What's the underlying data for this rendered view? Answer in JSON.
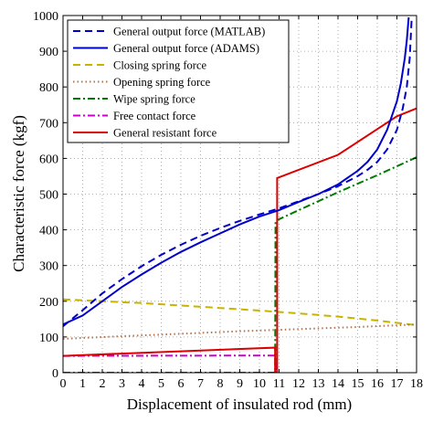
{
  "chart_data": {
    "type": "line",
    "xlabel": "Displacement of insulated rod (mm)",
    "ylabel": "Characteristic force (kgf)",
    "xlim": [
      0,
      18
    ],
    "ylim": [
      0,
      1000
    ],
    "xticks": [
      0,
      1,
      2,
      3,
      4,
      5,
      6,
      7,
      8,
      9,
      10,
      11,
      12,
      13,
      14,
      15,
      16,
      17,
      18
    ],
    "yticks": [
      0,
      100,
      200,
      300,
      400,
      500,
      600,
      700,
      800,
      900,
      1000
    ],
    "grid": true,
    "legend_position": "top-left",
    "series": [
      {
        "name": "General output force (MATLAB)",
        "color": "#0000cc",
        "style": "dashed",
        "x": [
          0,
          1,
          2,
          3,
          4,
          5,
          6,
          7,
          8,
          9,
          10,
          11,
          12,
          13,
          14,
          15,
          15.5,
          16,
          16.5,
          17,
          17.3,
          17.5,
          17.65,
          17.75
        ],
        "y": [
          130,
          175,
          222,
          262,
          298,
          330,
          358,
          383,
          405,
          425,
          443,
          460,
          480,
          500,
          522,
          550,
          568,
          590,
          625,
          680,
          740,
          800,
          880,
          990
        ]
      },
      {
        "name": "General output force (ADAMS)",
        "color": "#0000cc",
        "style": "solid",
        "x": [
          0,
          1,
          2,
          3,
          4,
          5,
          6,
          7,
          8,
          9,
          10,
          11,
          12,
          13,
          14,
          15,
          15.5,
          16,
          16.5,
          17,
          17.2,
          17.4,
          17.5,
          17.6
        ],
        "y": [
          135,
          160,
          200,
          240,
          275,
          308,
          338,
          365,
          390,
          415,
          437,
          455,
          478,
          500,
          527,
          565,
          590,
          625,
          680,
          760,
          810,
          880,
          930,
          995
        ]
      },
      {
        "name": "Closing spring force",
        "color": "#c8b400",
        "style": "dashed",
        "x": [
          0,
          2,
          4,
          6,
          8,
          10,
          12,
          14,
          16,
          18
        ],
        "y": [
          205,
          200,
          195,
          188,
          181,
          174,
          166,
          157,
          146,
          133
        ]
      },
      {
        "name": "Opening spring force",
        "color": "#b3734d",
        "style": "dotted",
        "x": [
          0,
          3,
          6,
          9,
          12,
          15,
          18
        ],
        "y": [
          95,
          102,
          109,
          116,
          122,
          128,
          135
        ]
      },
      {
        "name": "Wipe spring force",
        "color": "#007a00",
        "style": "dashdot",
        "x": [
          0,
          10.8,
          10.8,
          10.82,
          12,
          14,
          16,
          18
        ],
        "y": [
          0,
          0,
          0,
          425,
          455,
          505,
          553,
          603
        ]
      },
      {
        "name": "Free contact force",
        "color": "#cc00cc",
        "style": "dashdot",
        "x": [
          0,
          10.8,
          10.82
        ],
        "y": [
          47,
          48,
          0
        ]
      },
      {
        "name": "General resistant force",
        "color": "#dd0000",
        "style": "solid",
        "x": [
          0,
          10.8,
          10.8,
          10.9,
          10.9,
          14,
          17,
          18
        ],
        "y": [
          47,
          70,
          0,
          0,
          545,
          610,
          718,
          740
        ]
      }
    ]
  }
}
